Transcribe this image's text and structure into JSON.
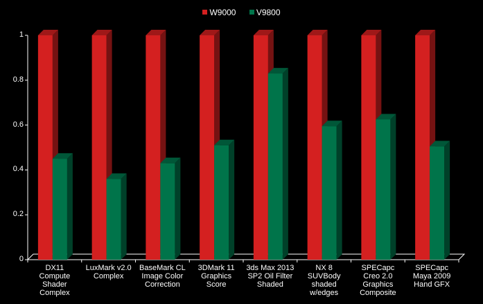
{
  "chart_data": {
    "type": "bar",
    "categories": [
      "DX11\nCompute\nShader\nComplex",
      "LuxMark v2.0\nComplex",
      "BaseMark CL\nImage Color\nCorrection",
      "3DMark 11\nGraphics\nScore",
      "3ds Max 2013\nSP2 Oil Filter\nShaded",
      "NX 8\nSUVBody\nshaded\nw/edges",
      "SPECapc\nCreo 2.0\nGraphics\nComposite",
      "SPECapc\nMaya 2009\nHand GFX"
    ],
    "series": [
      {
        "name": "W9000",
        "color": "#d42020",
        "values": [
          1,
          1,
          1,
          1,
          1,
          1,
          1,
          1
        ]
      },
      {
        "name": "V9800",
        "color": "#00744a",
        "values": [
          0.45,
          0.36,
          0.43,
          0.51,
          0.83,
          0.595,
          0.625,
          0.505
        ]
      }
    ],
    "ylim": [
      0,
      1
    ],
    "yticks": [
      "0",
      "0.2",
      "0.4",
      "0.6",
      "0.8",
      "1"
    ],
    "legend_position": "top-center",
    "grid": false
  }
}
